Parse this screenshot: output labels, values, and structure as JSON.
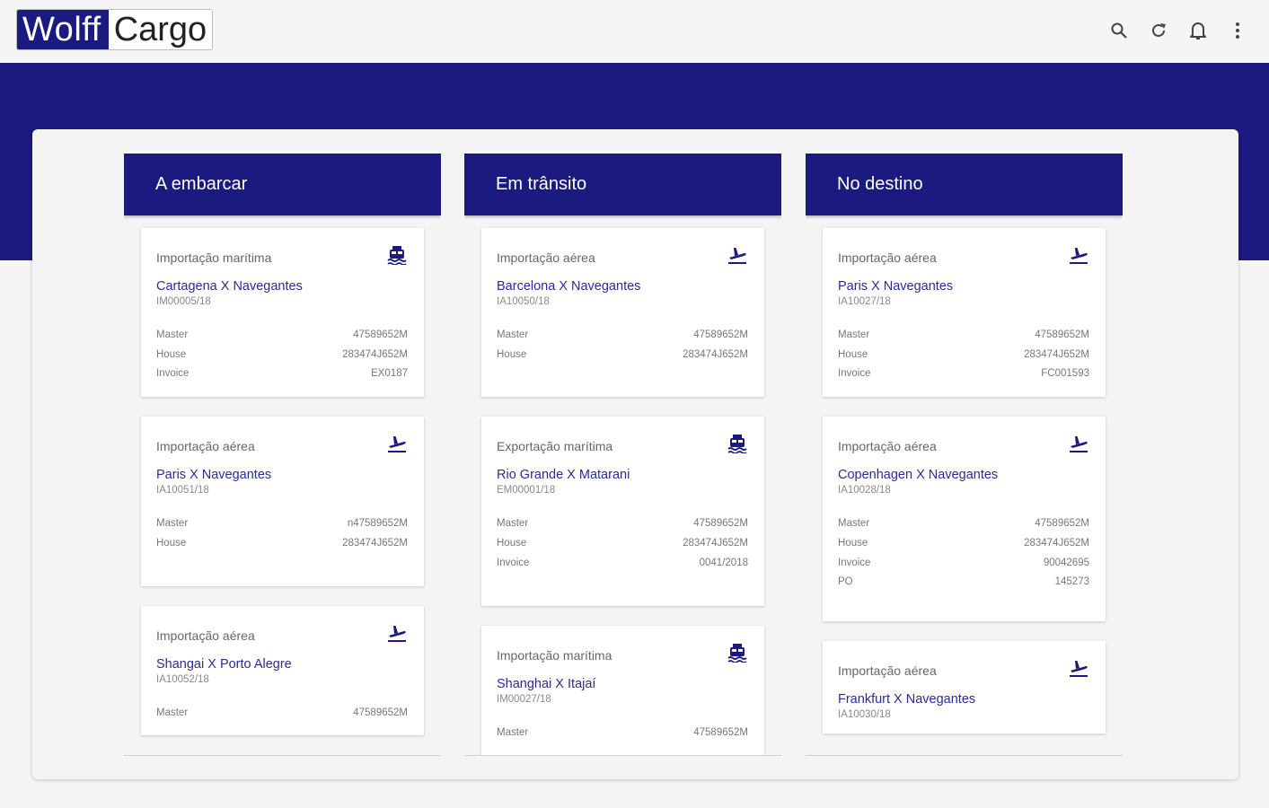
{
  "app": {
    "logo_part1": "Wolff",
    "logo_part2": "Cargo"
  },
  "toolbar": {
    "icons": [
      "search-icon",
      "refresh-icon",
      "bell-icon",
      "more-vert-icon"
    ]
  },
  "colors": {
    "brand": "#1a1a80",
    "link": "#2a2a9c"
  },
  "columns": [
    {
      "title": "A embarcar",
      "cards": [
        {
          "type": "Importação marítima",
          "icon": "ship-icon",
          "route": "Cartagena X Navegantes",
          "ref": "IM00005/18",
          "rows": [
            {
              "label": "Master",
              "value": "47589652M"
            },
            {
              "label": "House",
              "value": "283474J652M"
            },
            {
              "label": "Invoice",
              "value": "EX0187"
            }
          ]
        },
        {
          "type": "Importação aérea",
          "icon": "plane-icon",
          "route": "Paris X Navegantes",
          "ref": "IA10051/18",
          "rows": [
            {
              "label": "Master",
              "value": "n47589652M"
            },
            {
              "label": "House",
              "value": "283474J652M"
            }
          ]
        },
        {
          "type": "Importação aérea",
          "icon": "plane-icon",
          "route": "Shangai X Porto Alegre",
          "ref": "IA10052/18",
          "rows": [
            {
              "label": "Master",
              "value": "47589652M"
            }
          ]
        }
      ]
    },
    {
      "title": "Em trânsito",
      "cards": [
        {
          "type": "Importação aérea",
          "icon": "plane-icon",
          "route": "Barcelona X Navegantes",
          "ref": "IA10050/18",
          "rows": [
            {
              "label": "Master",
              "value": "47589652M"
            },
            {
              "label": "House",
              "value": "283474J652M"
            }
          ]
        },
        {
          "type": "Exportação marítima",
          "icon": "ship-icon",
          "route": "Rio Grande X Matarani",
          "ref": "EM00001/18",
          "rows": [
            {
              "label": "Master",
              "value": "47589652M"
            },
            {
              "label": "House",
              "value": "283474J652M"
            },
            {
              "label": "Invoice",
              "value": "0041/2018"
            }
          ]
        },
        {
          "type": "Importação marítima",
          "icon": "ship-icon",
          "route": "Shanghai X Itajaí",
          "ref": "IM00027/18",
          "rows": [
            {
              "label": "Master",
              "value": "47589652M"
            }
          ]
        }
      ]
    },
    {
      "title": "No destino",
      "cards": [
        {
          "type": "Importação aérea",
          "icon": "plane-icon",
          "route": "Paris X Navegantes",
          "ref": "IA10027/18",
          "rows": [
            {
              "label": "Master",
              "value": "47589652M"
            },
            {
              "label": "House",
              "value": "283474J652M"
            },
            {
              "label": "Invoice",
              "value": "FC001593"
            }
          ]
        },
        {
          "type": "Importação aérea",
          "icon": "plane-icon",
          "route": "Copenhagen X Navegantes",
          "ref": "IA10028/18",
          "rows": [
            {
              "label": "Master",
              "value": "47589652M"
            },
            {
              "label": "House",
              "value": "283474J652M"
            },
            {
              "label": "Invoice",
              "value": "90042695"
            },
            {
              "label": "PO",
              "value": "145273"
            }
          ]
        },
        {
          "type": "Importação aérea",
          "icon": "plane-icon",
          "route": "Frankfurt X Navegantes",
          "ref": "IA10030/18",
          "rows": []
        }
      ]
    }
  ]
}
